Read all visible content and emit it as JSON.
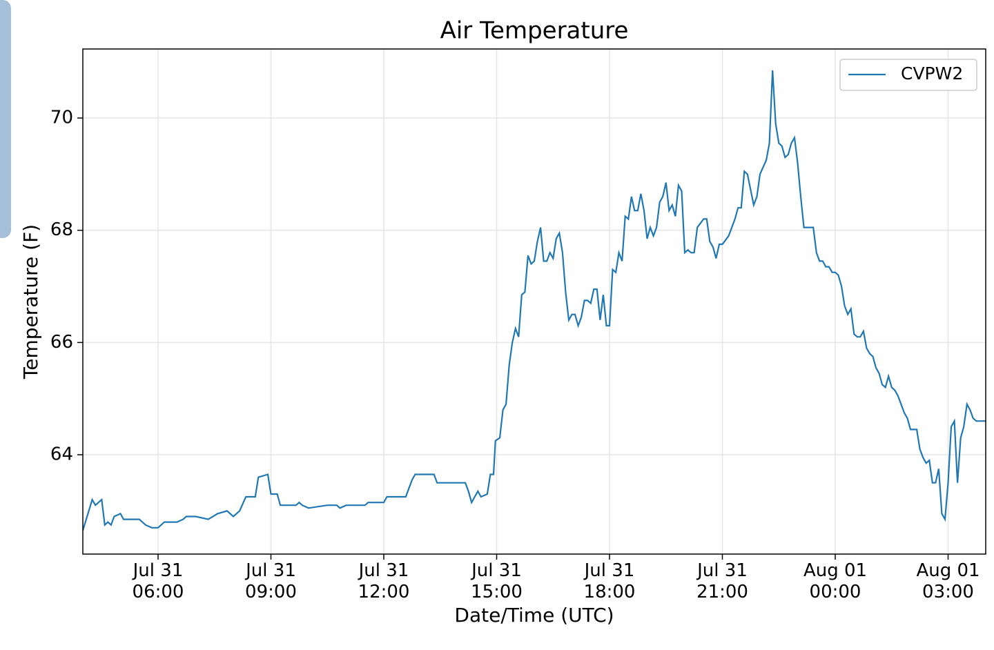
{
  "chart_data": {
    "type": "line",
    "title": "Air Temperature",
    "xlabel": "Date/Time (UTC)",
    "ylabel": "Temperature (F)",
    "xlim": [
      "Jul 31 04:00",
      "Aug 01 04:00"
    ],
    "xticks": [
      "Jul 31 06:00",
      "Jul 31 09:00",
      "Jul 31 12:00",
      "Jul 31 15:00",
      "Jul 31 18:00",
      "Jul 31 21:00",
      "Aug 01 00:00",
      "Aug 01 03:00"
    ],
    "ylim": [
      62.23,
      71.23
    ],
    "yticks": [
      64,
      66,
      68,
      70
    ],
    "grid": true,
    "legend": "upper-right",
    "x": [
      "Jul 31 04:00",
      "Jul 31 04:15",
      "Jul 31 04:20",
      "Jul 31 04:30",
      "Jul 31 04:35",
      "Jul 31 04:40",
      "Jul 31 04:45",
      "Jul 31 04:50",
      "Jul 31 05:00",
      "Jul 31 05:05",
      "Jul 31 05:20",
      "Jul 31 05:30",
      "Jul 31 05:40",
      "Jul 31 05:50",
      "Jul 31 06:00",
      "Jul 31 06:10",
      "Jul 31 06:30",
      "Jul 31 06:40",
      "Jul 31 06:45",
      "Jul 31 07:00",
      "Jul 31 07:20",
      "Jul 31 07:35",
      "Jul 31 07:50",
      "Jul 31 08:00",
      "Jul 31 08:10",
      "Jul 31 08:20",
      "Jul 31 08:35",
      "Jul 31 08:40",
      "Jul 31 08:55",
      "Jul 31 09:00",
      "Jul 31 09:10",
      "Jul 31 09:15",
      "Jul 31 09:40",
      "Jul 31 09:45",
      "Jul 31 09:50",
      "Jul 31 10:00",
      "Jul 31 10:30",
      "Jul 31 10:45",
      "Jul 31 10:50",
      "Jul 31 11:00",
      "Jul 31 11:30",
      "Jul 31 11:35",
      "Jul 31 12:00",
      "Jul 31 12:05",
      "Jul 31 12:35",
      "Jul 31 12:45",
      "Jul 31 12:50",
      "Jul 31 13:20",
      "Jul 31 13:25",
      "Jul 31 14:00",
      "Jul 31 14:10",
      "Jul 31 14:15",
      "Jul 31 14:20",
      "Jul 31 14:25",
      "Jul 31 14:30",
      "Jul 31 14:35",
      "Jul 31 14:45",
      "Jul 31 14:50",
      "Jul 31 14:55",
      "Jul 31 14:58",
      "Jul 31 15:05",
      "Jul 31 15:10",
      "Jul 31 15:15",
      "Jul 31 15:20",
      "Jul 31 15:25",
      "Jul 31 15:30",
      "Jul 31 15:35",
      "Jul 31 15:40",
      "Jul 31 15:45",
      "Jul 31 15:50",
      "Jul 31 15:55",
      "Jul 31 16:00",
      "Jul 31 16:05",
      "Jul 31 16:10",
      "Jul 31 16:15",
      "Jul 31 16:20",
      "Jul 31 16:25",
      "Jul 31 16:30",
      "Jul 31 16:35",
      "Jul 31 16:40",
      "Jul 31 16:45",
      "Jul 31 16:50",
      "Jul 31 16:55",
      "Jul 31 17:00",
      "Jul 31 17:05",
      "Jul 31 17:10",
      "Jul 31 17:15",
      "Jul 31 17:20",
      "Jul 31 17:25",
      "Jul 31 17:30",
      "Jul 31 17:35",
      "Jul 31 17:40",
      "Jul 31 17:45",
      "Jul 31 17:50",
      "Jul 31 17:55",
      "Jul 31 18:00",
      "Jul 31 18:05",
      "Jul 31 18:10",
      "Jul 31 18:15",
      "Jul 31 18:20",
      "Jul 31 18:25",
      "Jul 31 18:30",
      "Jul 31 18:35",
      "Jul 31 18:40",
      "Jul 31 18:45",
      "Jul 31 18:50",
      "Jul 31 18:55",
      "Jul 31 19:00",
      "Jul 31 19:05",
      "Jul 31 19:10",
      "Jul 31 19:15",
      "Jul 31 19:20",
      "Jul 31 19:25",
      "Jul 31 19:30",
      "Jul 31 19:35",
      "Jul 31 19:40",
      "Jul 31 19:45",
      "Jul 31 19:50",
      "Jul 31 19:55",
      "Jul 31 20:00",
      "Jul 31 20:05",
      "Jul 31 20:10",
      "Jul 31 20:15",
      "Jul 31 20:20",
      "Jul 31 20:30",
      "Jul 31 20:35",
      "Jul 31 20:40",
      "Jul 31 20:45",
      "Jul 31 20:50",
      "Jul 31 20:55",
      "Jul 31 21:00",
      "Jul 31 21:10",
      "Jul 31 21:20",
      "Jul 31 21:25",
      "Jul 31 21:30",
      "Jul 31 21:35",
      "Jul 31 21:40",
      "Jul 31 21:50",
      "Jul 31 21:55",
      "Jul 31 22:00",
      "Jul 31 22:10",
      "Jul 31 22:15",
      "Jul 31 22:20",
      "Jul 31 22:25",
      "Jul 31 22:30",
      "Jul 31 22:35",
      "Jul 31 22:40",
      "Jul 31 22:45",
      "Jul 31 22:50",
      "Jul 31 22:55",
      "Jul 31 23:00",
      "Jul 31 23:05",
      "Jul 31 23:10",
      "Jul 31 23:25",
      "Jul 31 23:30",
      "Jul 31 23:35",
      "Jul 31 23:40",
      "Jul 31 23:45",
      "Jul 31 23:50",
      "Jul 31 23:55",
      "Aug 01 00:00",
      "Aug 01 00:05",
      "Aug 01 00:10",
      "Aug 01 00:15",
      "Aug 01 00:20",
      "Aug 01 00:25",
      "Aug 01 00:30",
      "Aug 01 00:35",
      "Aug 01 00:40",
      "Aug 01 00:45",
      "Aug 01 00:50",
      "Aug 01 00:55",
      "Aug 01 01:00",
      "Aug 01 01:05",
      "Aug 01 01:10",
      "Aug 01 01:15",
      "Aug 01 01:20",
      "Aug 01 01:25",
      "Aug 01 01:30",
      "Aug 01 01:35",
      "Aug 01 01:40",
      "Aug 01 01:45",
      "Aug 01 01:50",
      "Aug 01 01:55",
      "Aug 01 02:00",
      "Aug 01 02:10",
      "Aug 01 02:15",
      "Aug 01 02:20",
      "Aug 01 02:25",
      "Aug 01 02:30",
      "Aug 01 02:35",
      "Aug 01 02:40",
      "Aug 01 02:45",
      "Aug 01 02:50",
      "Aug 01 02:55",
      "Aug 01 03:00",
      "Aug 01 03:05",
      "Aug 01 03:10",
      "Aug 01 03:15",
      "Aug 01 03:20",
      "Aug 01 03:25",
      "Aug 01 03:30",
      "Aug 01 03:35",
      "Aug 01 03:40",
      "Aug 01 03:45",
      "Aug 01 04:00"
    ],
    "series": [
      {
        "name": "CVPW2",
        "color": "#1f77b4",
        "values": [
          62.65,
          63.2,
          63.1,
          63.2,
          62.75,
          62.8,
          62.75,
          62.9,
          62.95,
          62.85,
          62.85,
          62.85,
          62.75,
          62.7,
          62.7,
          62.8,
          62.8,
          62.85,
          62.9,
          62.9,
          62.85,
          62.95,
          63.0,
          62.9,
          63.0,
          63.25,
          63.25,
          63.6,
          63.65,
          63.3,
          63.3,
          63.1,
          63.1,
          63.15,
          63.1,
          63.05,
          63.1,
          63.1,
          63.05,
          63.1,
          63.1,
          63.15,
          63.15,
          63.25,
          63.25,
          63.55,
          63.65,
          63.65,
          63.5,
          63.5,
          63.5,
          63.35,
          63.15,
          63.25,
          63.35,
          63.25,
          63.3,
          63.65,
          63.65,
          64.25,
          64.3,
          64.8,
          64.9,
          65.6,
          66.0,
          66.25,
          66.1,
          66.85,
          66.9,
          67.55,
          67.4,
          67.45,
          67.8,
          68.05,
          67.45,
          67.45,
          67.6,
          67.5,
          67.85,
          67.95,
          67.6,
          66.9,
          66.4,
          66.5,
          66.5,
          66.3,
          66.45,
          66.75,
          66.75,
          66.7,
          66.95,
          66.95,
          66.4,
          66.85,
          66.3,
          66.3,
          67.3,
          67.25,
          67.6,
          67.45,
          68.25,
          68.2,
          68.6,
          68.35,
          68.35,
          68.65,
          68.35,
          67.85,
          68.05,
          67.9,
          68.05,
          68.5,
          68.6,
          68.85,
          68.35,
          68.45,
          68.25,
          68.8,
          68.7,
          67.6,
          67.65,
          67.6,
          67.6,
          68.05,
          68.2,
          68.2,
          67.8,
          67.7,
          67.5,
          67.75,
          67.75,
          67.9,
          68.2,
          68.4,
          68.4,
          69.05,
          69.0,
          68.45,
          68.6,
          69.0,
          69.25,
          69.55,
          70.85,
          69.9,
          69.55,
          69.5,
          69.3,
          69.35,
          69.55,
          69.65,
          69.2,
          68.6,
          68.05,
          68.05,
          67.6,
          67.45,
          67.45,
          67.35,
          67.35,
          67.25,
          67.25,
          67.2,
          67.0,
          66.65,
          66.5,
          66.6,
          66.15,
          66.1,
          66.1,
          66.2,
          65.9,
          65.8,
          65.75,
          65.55,
          65.45,
          65.25,
          65.2,
          65.4,
          65.2,
          65.15,
          65.05,
          64.9,
          64.75,
          64.65,
          64.45,
          64.45,
          64.1,
          63.95,
          63.85,
          63.9,
          63.5,
          63.5,
          63.75,
          62.95,
          62.85,
          63.5,
          64.5,
          64.6,
          63.5,
          64.3,
          64.5,
          64.9,
          64.8,
          64.65,
          64.6,
          64.6
        ]
      }
    ]
  }
}
